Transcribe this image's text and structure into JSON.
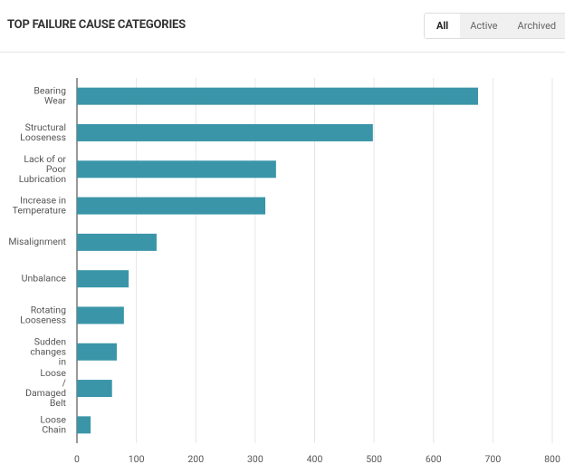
{
  "header": {
    "title": "TOP FAILURE CAUSE CATEGORIES",
    "tabs": [
      "All",
      "Active",
      "Archived"
    ],
    "selected_tab": 0
  },
  "chart_data": {
    "type": "bar",
    "orientation": "horizontal",
    "categories": [
      "Bearing\nWear",
      "Structural\nLooseness",
      "Lack of or\nPoor\nLubrication",
      "Increase in\nTemperature",
      "Misalignment",
      "Unbalance",
      "Rotating\nLooseness",
      "Sudden\nchanges\nin",
      "Loose\n/\nDamaged\nBelt",
      "Loose\nChain"
    ],
    "values": [
      675,
      498,
      335,
      317,
      134,
      87,
      79,
      67,
      59,
      23
    ],
    "color": "#3a95a8",
    "xlim": [
      0,
      800
    ],
    "xticks": [
      0,
      100,
      200,
      300,
      400,
      500,
      600,
      700,
      800
    ],
    "grid": true
  }
}
